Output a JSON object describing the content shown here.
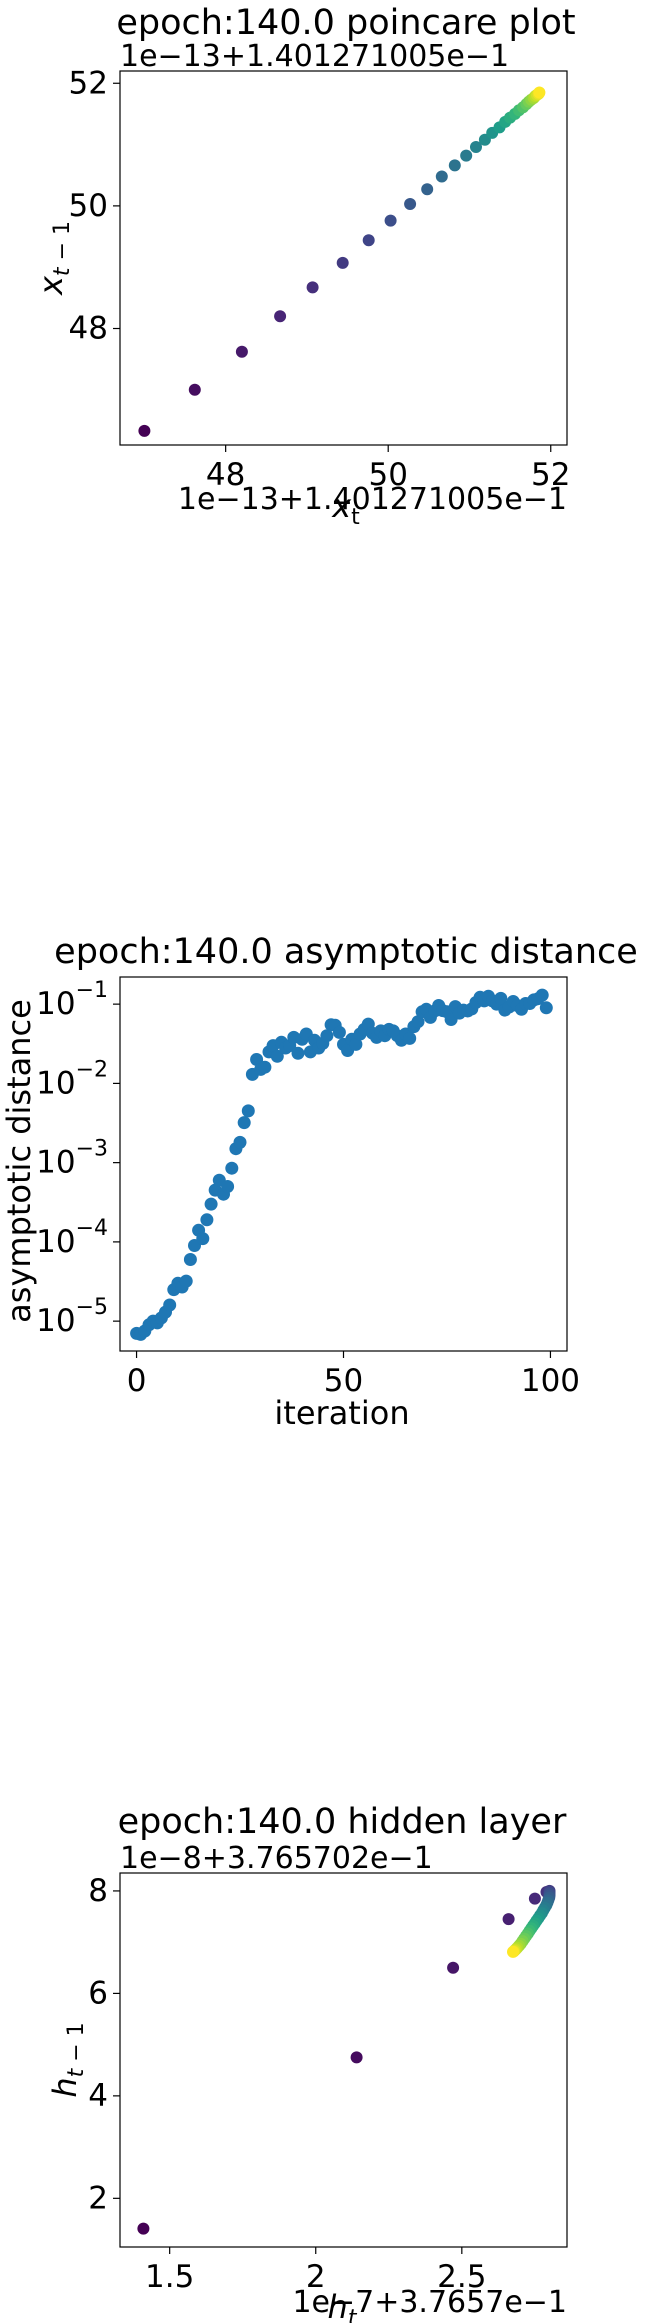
{
  "chart_data": [
    {
      "type": "scatter",
      "title": "epoch:140.0 poincare plot",
      "xlabel": "x_t",
      "ylabel": "x_{t-1}",
      "x_offset_label": "1e−13+1.401271005e−1",
      "y_offset_label": "1e−13+1.401271005e−1",
      "xlim": [
        46.7,
        52.2
      ],
      "ylim": [
        46.1,
        52.2
      ],
      "x_ticks": [
        48,
        50,
        52
      ],
      "y_ticks": [
        48,
        50,
        52
      ],
      "colormap": "viridis",
      "points": {
        "x": [
          47.0,
          47.62,
          48.2,
          48.67,
          49.07,
          49.44,
          49.76,
          50.03,
          50.27,
          50.48,
          50.66,
          50.82,
          50.96,
          51.08,
          51.19,
          51.28,
          51.37,
          51.44,
          51.5,
          51.56,
          51.61,
          51.66,
          51.7,
          51.73,
          51.76,
          51.79,
          51.81,
          51.83,
          51.85,
          51.86
        ],
        "y": [
          46.33,
          47.0,
          47.62,
          48.2,
          48.67,
          49.07,
          49.44,
          49.76,
          50.03,
          50.27,
          50.48,
          50.66,
          50.82,
          50.96,
          51.08,
          51.19,
          51.28,
          51.37,
          51.44,
          51.5,
          51.56,
          51.61,
          51.66,
          51.7,
          51.73,
          51.76,
          51.79,
          51.81,
          51.83,
          51.85
        ]
      },
      "grid": false
    },
    {
      "type": "scatter",
      "title": "epoch:140.0 asymptotic distance",
      "xlabel": "iteration",
      "ylabel": "asymptotic distance",
      "yscale": "log",
      "xlim": [
        -4,
        104
      ],
      "ylim": [
        4.2e-06,
        0.22
      ],
      "x_ticks": [
        0,
        50,
        100
      ],
      "y_ticks": [
        {
          "value": 1e-05,
          "base": "10",
          "exp": "−5"
        },
        {
          "value": 0.0001,
          "base": "10",
          "exp": "−4"
        },
        {
          "value": 0.001,
          "base": "10",
          "exp": "−3"
        },
        {
          "value": 0.01,
          "base": "10",
          "exp": "−2"
        },
        {
          "value": 0.1,
          "base": "10",
          "exp": "−1"
        }
      ],
      "color": "#1f77b4",
      "series": [
        {
          "x": [
            0,
            1,
            2,
            3,
            4,
            5,
            6,
            7,
            8,
            9,
            10,
            11,
            12,
            13,
            14,
            15,
            16,
            17,
            18,
            19,
            20,
            21,
            22,
            23,
            24,
            25,
            26,
            27,
            28,
            29,
            30,
            31,
            32,
            33,
            34,
            35,
            36,
            37,
            38,
            39,
            40,
            41,
            42,
            43,
            44,
            45,
            46,
            47,
            48,
            49,
            50,
            51,
            52,
            53,
            54,
            55,
            56,
            57,
            58,
            59,
            60,
            61,
            62,
            63,
            64,
            65,
            66,
            67,
            68,
            69,
            70,
            71,
            72,
            73,
            74,
            75,
            76,
            77,
            78,
            79,
            80,
            81,
            82,
            83,
            84,
            85,
            86,
            87,
            88,
            89,
            90,
            91,
            92,
            93,
            94,
            95,
            96,
            97,
            98,
            99
          ],
          "values": [
            7e-06,
            6.8e-06,
            7.5e-06,
            9e-06,
            1e-05,
            9.5e-06,
            1.1e-05,
            1.3e-05,
            1.6e-05,
            2.5e-05,
            3e-05,
            2.7e-05,
            3.2e-05,
            6e-05,
            9e-05,
            0.00014,
            0.00011,
            0.00019,
            0.0003,
            0.00045,
            0.0006,
            0.0004,
            0.0005,
            0.00085,
            0.0015,
            0.0018,
            0.0032,
            0.0045,
            0.013,
            0.02,
            0.015,
            0.016,
            0.025,
            0.03,
            0.022,
            0.033,
            0.028,
            0.03,
            0.038,
            0.024,
            0.036,
            0.042,
            0.025,
            0.035,
            0.028,
            0.032,
            0.04,
            0.055,
            0.054,
            0.044,
            0.031,
            0.026,
            0.036,
            0.031,
            0.042,
            0.048,
            0.056,
            0.043,
            0.038,
            0.046,
            0.04,
            0.048,
            0.046,
            0.04,
            0.035,
            0.042,
            0.037,
            0.052,
            0.06,
            0.08,
            0.086,
            0.068,
            0.082,
            0.096,
            0.083,
            0.08,
            0.064,
            0.093,
            0.077,
            0.084,
            0.082,
            0.087,
            0.105,
            0.122,
            0.11,
            0.126,
            0.11,
            0.1,
            0.118,
            0.084,
            0.092,
            0.108,
            0.096,
            0.086,
            0.102,
            0.102,
            0.113,
            0.117,
            0.13,
            0.09
          ]
        }
      ],
      "grid": false
    },
    {
      "type": "scatter",
      "title": "epoch:140.0 hidden layer",
      "xlabel": "h_t",
      "ylabel": "h_{t-1}",
      "x_offset_label": "1e−7+3.7657e−1",
      "y_offset_label": "1e−8+3.765702e−1",
      "xlim": [
        1.33,
        2.86
      ],
      "ylim": [
        1.05,
        8.35
      ],
      "x_ticks": [
        1.5,
        2.0,
        2.5
      ],
      "y_ticks": [
        2,
        4,
        6,
        8
      ],
      "colormap": "viridis",
      "points": {
        "x": [
          1.41,
          2.14,
          2.47,
          2.66,
          2.75,
          2.79,
          2.8,
          2.8,
          2.8,
          2.8,
          2.799,
          2.796,
          2.793,
          2.789,
          2.784,
          2.779,
          2.774,
          2.768,
          2.762,
          2.756,
          2.75,
          2.744,
          2.738,
          2.732,
          2.726,
          2.72,
          2.714,
          2.708,
          2.702,
          2.696,
          2.69,
          2.685,
          2.681,
          2.678,
          2.675
        ],
        "y": [
          1.41,
          4.75,
          6.5,
          7.45,
          7.85,
          7.98,
          8.0,
          7.98,
          7.95,
          7.91,
          7.87,
          7.82,
          7.77,
          7.72,
          7.67,
          7.62,
          7.57,
          7.52,
          7.47,
          7.42,
          7.37,
          7.32,
          7.27,
          7.22,
          7.17,
          7.12,
          7.07,
          7.02,
          6.97,
          6.93,
          6.89,
          6.86,
          6.84,
          6.82,
          6.81
        ]
      },
      "grid": false
    }
  ]
}
